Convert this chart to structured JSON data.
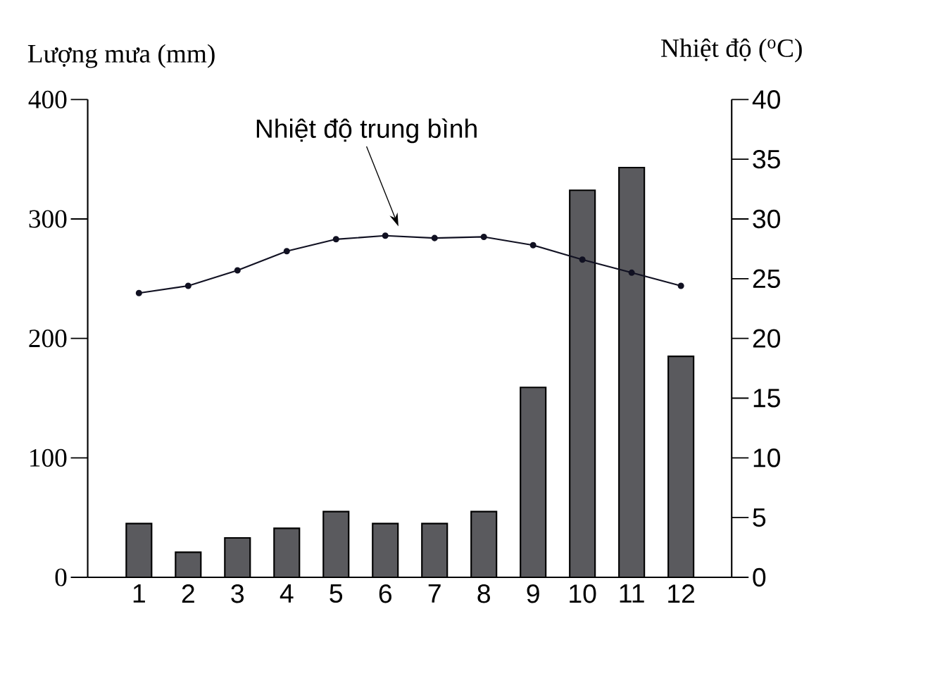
{
  "chart_data": {
    "type": "bar",
    "categories": [
      "1",
      "2",
      "3",
      "4",
      "5",
      "6",
      "7",
      "8",
      "9",
      "10",
      "11",
      "12"
    ],
    "ylabel": "Lượng mưa (mm)",
    "y2label": "Nhiệt độ ($^{o}$C)",
    "series": [
      {
        "color": "#5a5a5e",
        "values": [
          45,
          21,
          33,
          41,
          55,
          45,
          45,
          55,
          159,
          324,
          343,
          185
        ]
      },
      {
        "type": "line",
        "name": "Nhiệt độ trung bình",
        "axis": "y2",
        "color": "#111122",
        "values": [
          23.8,
          24.4,
          25.7,
          27.3,
          28.3,
          28.6,
          28.4,
          28.5,
          27.8,
          26.6,
          25.5,
          24.4
        ]
      }
    ],
    "ylim": [
      0,
      400
    ],
    "yticks": [
      0,
      100,
      200,
      300,
      400
    ],
    "y2lim": [
      0,
      40
    ],
    "y2ticks": [
      0,
      5,
      10,
      15,
      20,
      25,
      30,
      35,
      40
    ],
    "marker": "circle",
    "grid": false
  }
}
